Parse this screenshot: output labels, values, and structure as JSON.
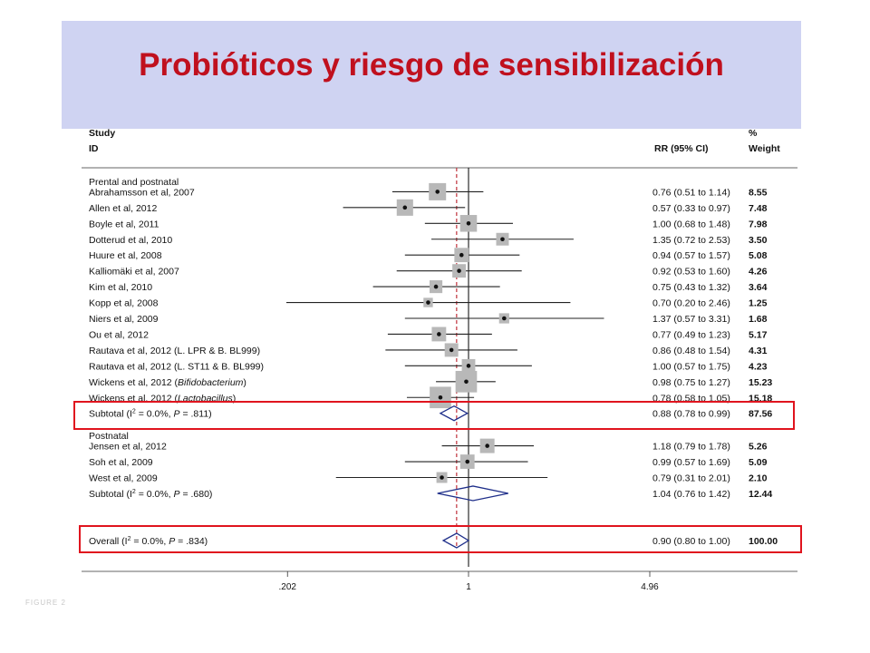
{
  "title": "Probióticos y riesgo de sensibilización",
  "footer_cut_text": "FIGURE 2",
  "chart_data": {
    "type": "forest",
    "x_scale": "log",
    "x_ticks": [
      ".202",
      "1",
      "4.96"
    ],
    "x_tick_values": [
      0.202,
      1,
      4.96
    ],
    "xlim": [
      0.1,
      10
    ],
    "null_line": 1,
    "overall_line": 0.9,
    "header": {
      "study_line1": "Study",
      "study_line2": "ID",
      "effect_label": "RR (95% CI)",
      "weight_line1": "%",
      "weight_line2": "Weight"
    },
    "groups": [
      {
        "label": "Prental and postnatal",
        "studies": [
          {
            "id": "Abrahamsson et al, 2007",
            "rr": 0.76,
            "lo": 0.51,
            "hi": 1.14,
            "ci_text": "0.76 (0.51 to 1.14)",
            "weight": "8.55"
          },
          {
            "id": "Allen et al, 2012",
            "rr": 0.57,
            "lo": 0.33,
            "hi": 0.97,
            "ci_text": "0.57 (0.33 to 0.97)",
            "weight": "7.48"
          },
          {
            "id": "Boyle et al, 2011",
            "rr": 1.0,
            "lo": 0.68,
            "hi": 1.48,
            "ci_text": "1.00 (0.68 to 1.48)",
            "weight": "7.98"
          },
          {
            "id": "Dotterud et al, 2010",
            "rr": 1.35,
            "lo": 0.72,
            "hi": 2.53,
            "ci_text": "1.35 (0.72 to 2.53)",
            "weight": "3.50"
          },
          {
            "id": "Huure et al, 2008",
            "rr": 0.94,
            "lo": 0.57,
            "hi": 1.57,
            "ci_text": "0.94 (0.57 to 1.57)",
            "weight": "5.08"
          },
          {
            "id": "Kalliomäki et al, 2007",
            "rr": 0.92,
            "lo": 0.53,
            "hi": 1.6,
            "ci_text": "0.92 (0.53 to 1.60)",
            "weight": "4.26"
          },
          {
            "id": "Kim et al, 2010",
            "rr": 0.75,
            "lo": 0.43,
            "hi": 1.32,
            "ci_text": "0.75 (0.43 to 1.32)",
            "weight": "3.64"
          },
          {
            "id": "Kopp et al, 2008",
            "rr": 0.7,
            "lo": 0.2,
            "hi": 2.46,
            "ci_text": "0.70 (0.20 to 2.46)",
            "weight": "1.25"
          },
          {
            "id": "Niers et al, 2009",
            "rr": 1.37,
            "lo": 0.57,
            "hi": 3.31,
            "ci_text": "1.37 (0.57 to 3.31)",
            "weight": "1.68"
          },
          {
            "id": "Ou et al, 2012",
            "rr": 0.77,
            "lo": 0.49,
            "hi": 1.23,
            "ci_text": "0.77 (0.49 to 1.23)",
            "weight": "5.17"
          },
          {
            "id": "Rautava et al, 2012 (L. LPR & B. BL999)",
            "rr": 0.86,
            "lo": 0.48,
            "hi": 1.54,
            "ci_text": "0.86 (0.48 to 1.54)",
            "weight": "4.31"
          },
          {
            "id": "Rautava et al, 2012 (L. ST11 & B. BL999)",
            "rr": 1.0,
            "lo": 0.57,
            "hi": 1.75,
            "ci_text": "1.00 (0.57 to 1.75)",
            "weight": "4.23"
          },
          {
            "id": "Wickens et al, 2012 (",
            "id_italic": "Bifidobacterium",
            "id_end": ")",
            "rr": 0.98,
            "lo": 0.75,
            "hi": 1.27,
            "ci_text": "0.98 (0.75 to 1.27)",
            "weight": "15.23"
          },
          {
            "id": "Wickens et al, 2012 (",
            "id_italic": "Lactobacillus",
            "id_end": ")",
            "rr": 0.78,
            "lo": 0.58,
            "hi": 1.05,
            "ci_text": "0.78 (0.58 to 1.05)",
            "weight": "15.18"
          }
        ],
        "subtotal": {
          "label_pre": "Subtotal  (I",
          "label_sup": "2",
          "label_post": " = 0.0%, ",
          "label_p": "P",
          "label_pval": " = .811)",
          "rr": 0.88,
          "lo": 0.78,
          "hi": 0.99,
          "ci_text": "0.88 (0.78 to 0.99)",
          "weight": "87.56"
        }
      },
      {
        "label": "Postnatal",
        "studies": [
          {
            "id": "Jensen et al, 2012",
            "rr": 1.18,
            "lo": 0.79,
            "hi": 1.78,
            "ci_text": "1.18 (0.79 to 1.78)",
            "weight": "5.26"
          },
          {
            "id": "Soh et al, 2009",
            "rr": 0.99,
            "lo": 0.57,
            "hi": 1.69,
            "ci_text": "0.99 (0.57 to 1.69)",
            "weight": "5.09"
          },
          {
            "id": "West et al, 2009",
            "rr": 0.79,
            "lo": 0.31,
            "hi": 2.01,
            "ci_text": "0.79 (0.31 to 2.01)",
            "weight": "2.10"
          }
        ],
        "subtotal": {
          "label_pre": "Subtotal  (I",
          "label_sup": "2",
          "label_post": " = 0.0%, ",
          "label_p": "P",
          "label_pval": " = .680)",
          "rr": 1.04,
          "lo": 0.76,
          "hi": 1.42,
          "ci_text": "1.04 (0.76 to 1.42)",
          "weight": "12.44"
        }
      }
    ],
    "overall": {
      "label_pre": "Overall  (I",
      "label_sup": "2",
      "label_post": " = 0.0%, ",
      "label_p": "P",
      "label_pval": " = .834)",
      "rr": 0.9,
      "lo": 0.8,
      "hi": 1.0,
      "ci_text": "0.90 (0.80 to 1.00)",
      "weight": "100.00"
    }
  },
  "colors": {
    "title": "#c0101e",
    "banner": "#cfd3f2",
    "highlight_box": "#e0141e",
    "diamond": "#1f2f8a",
    "null_line": "#000000",
    "overall_line": "#c0303a",
    "box": "#b8b8b8"
  }
}
